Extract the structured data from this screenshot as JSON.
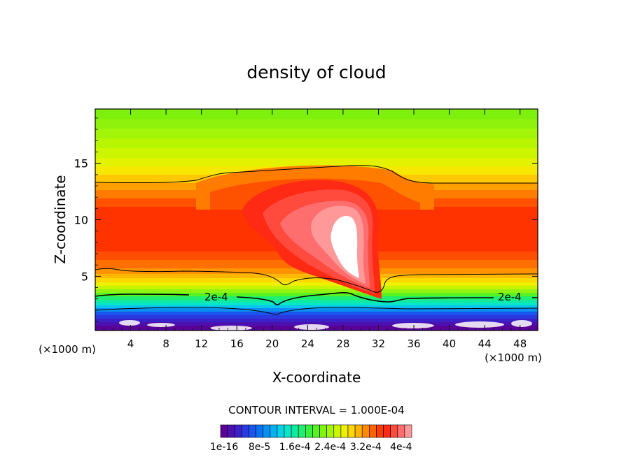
{
  "chart_data": {
    "type": "heatmap",
    "title": "density of cloud",
    "xlabel": "X-coordinate",
    "ylabel": "Z-coordinate",
    "x_unit": "(×1000 m)",
    "xlim": [
      0,
      50
    ],
    "ylim": [
      0.2,
      19.8
    ],
    "x_ticks": [
      4,
      8,
      12,
      16,
      20,
      24,
      28,
      32,
      36,
      40,
      44,
      48
    ],
    "y_ticks": [
      5,
      10,
      15
    ],
    "contour_interval_text": "CONTOUR INTERVAL = 1.000E-04",
    "contour_labels": [
      {
        "text": "2e-4",
        "x": 14.5,
        "z": 3.0
      },
      {
        "text": "2e-4",
        "x": 47.0,
        "z": 3.0
      }
    ],
    "colorbar": {
      "colors": [
        "#5a0096",
        "#4b10b0",
        "#3a22c8",
        "#2a3ae0",
        "#1a55f0",
        "#0a72f5",
        "#0890f0",
        "#08b0f0",
        "#08d2e8",
        "#08e6c8",
        "#10eaa0",
        "#20ee70",
        "#38f040",
        "#58f220",
        "#80f410",
        "#a6f508",
        "#ccf500",
        "#eef000",
        "#ffd800",
        "#ffb400",
        "#ff8c00",
        "#ff6400",
        "#ff3c00",
        "#ff2a14",
        "#ff4a3e",
        "#ff6e6e",
        "#ff9898"
      ],
      "tick_labels": [
        "1e-16",
        "8e-5",
        "1.6e-4",
        "2.4e-4",
        "3.2e-4",
        "4e-4"
      ]
    }
  }
}
